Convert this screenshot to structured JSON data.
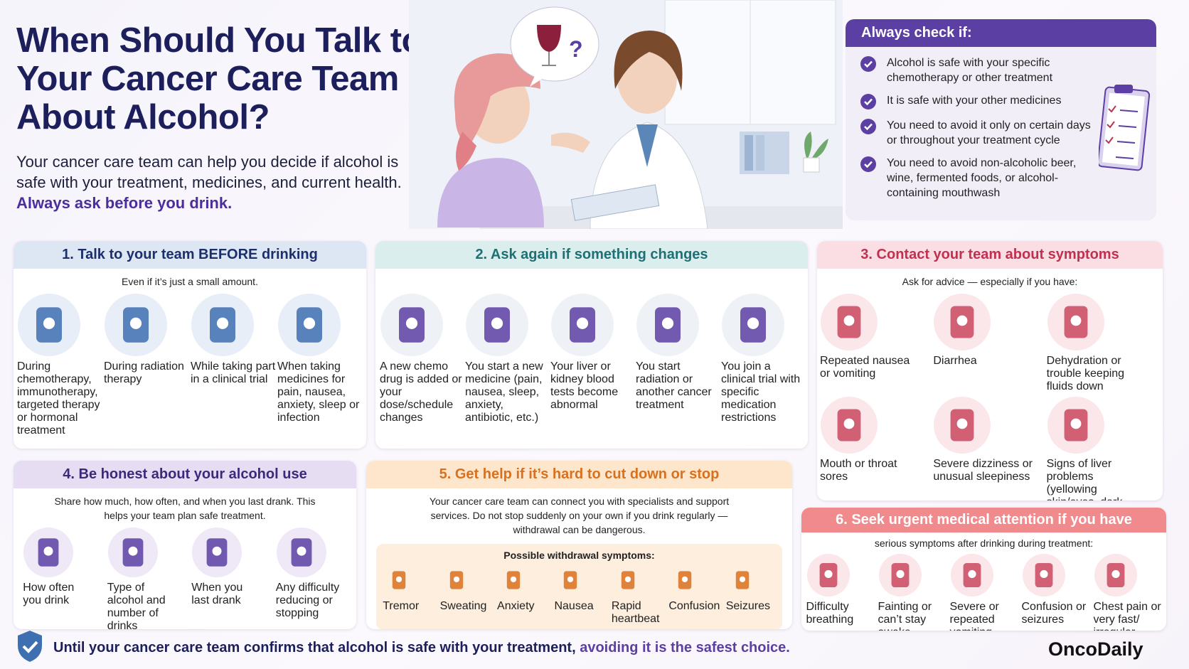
{
  "header": {
    "title": "When Should You Talk to Your Cancer Care Team About Alcohol?",
    "intro": "Your cancer care team can help you decide if alcohol is safe with your treatment, medicines, and current health.",
    "intro_emphasis": "Always ask before you drink."
  },
  "illustration": {
    "bubble_mark": "?"
  },
  "check_box": {
    "title": "Always check if:",
    "items": [
      "Alcohol is safe with your specific chemotherapy or other treatment",
      "It is safe with your other medicines",
      "You need to avoid it only on certain days or throughout your treatment cycle",
      "You need to avoid non-alcoholic beer, wine, fermented foods, or alcohol-containing mouthwash"
    ]
  },
  "sections": [
    {
      "title": "1. Talk to your team BEFORE drinking",
      "subtitle": "Even if it’s just a small amount.",
      "items": [
        "During chemotherapy, immunotherapy, targeted therapy or hormonal treatment",
        "During radiation therapy",
        "While taking part in a clinical trial",
        "When taking medicines for pain, nausea, anxiety, sleep or infection"
      ]
    },
    {
      "title": "2. Ask again if something changes",
      "items": [
        "A new chemo drug is added or your dose/schedule changes",
        "You start a new medicine (pain, nausea, sleep, anxiety, antibiotic, etc.)",
        "Your liver or kidney blood tests become abnormal",
        "You start radiation or another cancer treatment",
        "You join a clinical trial with specific medication restrictions"
      ]
    },
    {
      "title": "3. Contact your team about symptoms",
      "subtitle": "Ask for advice — especially if you have:",
      "items": [
        "Repeated nausea or vomiting",
        "Diarrhea",
        "Dehydration or trouble keeping fluids down",
        "Mouth or throat sores",
        "Severe dizziness or unusual sleepiness",
        "Signs of liver problems (yellowing skin/eyes, dark urine)"
      ]
    },
    {
      "title": "4. Be honest about your alcohol use",
      "subtitle": "Share how much, how often, and when you last drank. This helps your team plan safe treatment.",
      "items": [
        "How often you drink",
        "Type of alcohol and number of drinks",
        "When you last drank",
        "Any difficulty reducing or stopping"
      ]
    },
    {
      "title": "5. Get help if it’s hard to cut down or stop",
      "subtitle": "Your cancer care team can connect you with specialists and support services. Do not stop suddenly on your own if you drink regularly — withdrawal can be dangerous.",
      "box_title": "Possible withdrawal symptoms:",
      "items": [
        "Tremor",
        "Sweating",
        "Anxiety",
        "Nausea",
        "Rapid heartbeat",
        "Confusion",
        "Seizures"
      ]
    },
    {
      "title": "6. Seek urgent medical attention if you have",
      "subtitle": "serious symptoms after drinking during treatment:",
      "items": [
        "Difficulty breathing",
        "Fainting or can’t stay awake",
        "Severe or repeated vomiting",
        "Confusion or seizures",
        "Chest pain or very fast/ irregular heartbeat"
      ]
    }
  ],
  "footer": {
    "text": "Until your cancer care team confirms that alcohol is safe with your treatment,",
    "emphasis": "avoiding it is the safest choice.",
    "brand": "OncoDaily"
  }
}
